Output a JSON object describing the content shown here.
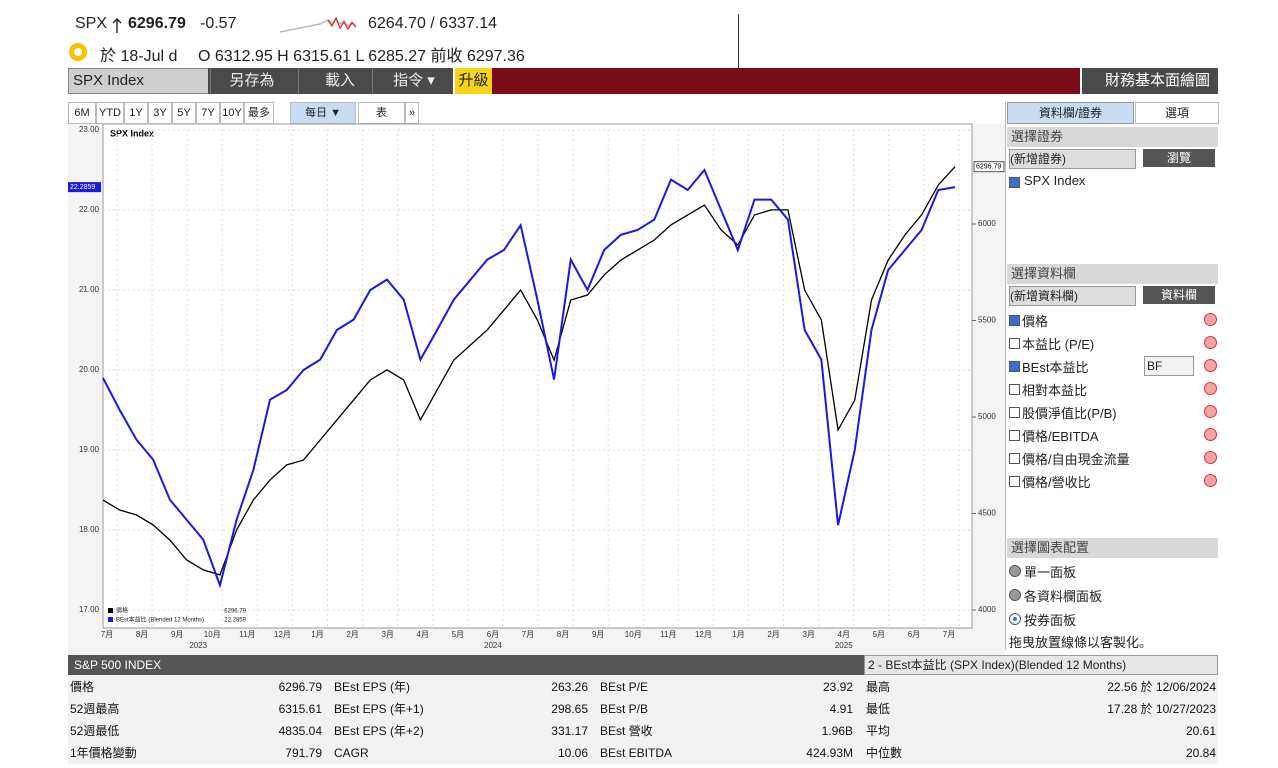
{
  "header": {
    "symbol": "SPX",
    "price": "6296.79",
    "change": "-0.57",
    "range": "6264.70 / 6337.14",
    "date": "於 18-Jul d",
    "ohlc": "O 6312.95 H 6315.61 L 6285.27 前收 6297.36"
  },
  "toolbar": {
    "security": "SPX Index",
    "buttons": [
      "另存為",
      "載入",
      "指令 ▾"
    ],
    "upgrade": "升級",
    "right_title": "財務基本面繪圖"
  },
  "periods": [
    "6M",
    "YTD",
    "1Y",
    "3Y",
    "5Y",
    "7Y",
    "10Y",
    "最多"
  ],
  "frequency": "每日 ▼",
  "table_button": "表",
  "more": "»",
  "chart": {
    "type": "line",
    "title": "SPX Index",
    "months": [
      "7月",
      "8月",
      "9月",
      "10月",
      "11月",
      "12月",
      "1月",
      "2月",
      "3月",
      "4月",
      "5月",
      "6月",
      "7月",
      "8月",
      "9月",
      "10月",
      "11月",
      "12月",
      "1月",
      "2月",
      "3月",
      "4月",
      "5月",
      "6月",
      "7月"
    ],
    "years": [
      "2023",
      "2024",
      "2025"
    ],
    "ylim": [
      16.775,
      23.075
    ],
    "yticks": [
      {
        "value": 17,
        "label": "17.00"
      },
      {
        "value": 18,
        "label": "18.00"
      },
      {
        "value": 19,
        "label": "19.00"
      },
      {
        "value": 20,
        "label": "20.00"
      },
      {
        "value": 21,
        "label": "21.00"
      },
      {
        "value": 22,
        "label": "22.00"
      },
      {
        "value": 23,
        "label": "23.00"
      }
    ],
    "y2lim": [
      3907,
      6518
    ],
    "y2ticks": [
      4000,
      4500,
      5000,
      5500,
      6000
    ],
    "grid": true,
    "series": [
      {
        "name": "價格",
        "color": "#000000",
        "axis": "y2",
        "last_label": "6296.79",
        "values": [
          4570,
          4518,
          4493,
          4441,
          4363,
          4260,
          4208,
          4182,
          4415,
          4570,
          4674,
          4752,
          4777,
          4881,
          4985,
          5088,
          5192,
          5244,
          5192,
          4985,
          5140,
          5295,
          5373,
          5451,
          5554,
          5658,
          5503,
          5295,
          5606,
          5632,
          5736,
          5813,
          5865,
          5917,
          5995,
          6047,
          6098,
          5969,
          5891,
          6047,
          6073,
          6073,
          5658,
          5503,
          4933,
          5088,
          5606,
          5813,
          5943,
          6047,
          6202,
          6296.79
        ]
      },
      {
        "name": "BEst本益比 (Blended 12 Months)",
        "color": "#1a1adc",
        "axis": "y",
        "last_label": "22.2859",
        "values": [
          19.9,
          19.5,
          19.13,
          18.88,
          18.38,
          18.13,
          17.88,
          17.31,
          18.13,
          18.75,
          19.63,
          19.75,
          20.0,
          20.13,
          20.5,
          20.63,
          21.0,
          21.13,
          20.88,
          20.13,
          20.5,
          20.88,
          21.13,
          21.38,
          21.5,
          21.81,
          20.88,
          19.88,
          21.38,
          21.0,
          21.5,
          21.69,
          21.75,
          21.88,
          22.38,
          22.25,
          22.5,
          22.0,
          21.5,
          22.13,
          22.13,
          21.88,
          20.5,
          20.13,
          18.06,
          19.0,
          20.5,
          21.25,
          21.5,
          21.75,
          22.25,
          22.2859
        ]
      }
    ]
  },
  "panel": {
    "tabs": [
      "資料欄/證券",
      "選項"
    ],
    "select_security": "選擇證券",
    "add_security": "(新增證券)",
    "browse": "瀏覽",
    "securities": [
      "SPX Index"
    ],
    "select_field": "選擇資料欄",
    "add_field": "(新增資料欄)",
    "field_button": "資料欄",
    "fields": [
      {
        "label": "價格",
        "checked": true
      },
      {
        "label": "本益比 (P/E)",
        "checked": false
      },
      {
        "label": "BEst本益比",
        "checked": true
      },
      {
        "label": "相對本益比",
        "checked": false
      },
      {
        "label": "股價淨值比(P/B)",
        "checked": false
      },
      {
        "label": "價格/EBITDA",
        "checked": false
      },
      {
        "label": "價格/自由現金流量",
        "checked": false
      },
      {
        "label": "價格/營收比",
        "checked": false
      }
    ],
    "bf": "BF",
    "select_layout": "選擇圖表配置",
    "layouts": [
      {
        "label": "單一面板",
        "selected": false
      },
      {
        "label": "各資料欄面板",
        "selected": false
      },
      {
        "label": "按券面板",
        "selected": true
      }
    ],
    "hint": "拖曳放置線條以客製化。"
  },
  "table": {
    "title": "S&P 500 INDEX",
    "selector": "2 - BEst本益比 (SPX Index)(Blended 12 Months)",
    "rows": [
      [
        "價格",
        "6296.79",
        "BEst EPS  (年)",
        "263.26",
        "BEst P/E",
        "23.92",
        "最高",
        "22.56 於 12/06/2024"
      ],
      [
        "52週最高",
        "6315.61",
        "BEst EPS  (年+1)",
        "298.65",
        "BEst P/B",
        "4.91",
        "最低",
        "17.28 於 10/27/2023"
      ],
      [
        "52週最低",
        "4835.04",
        "BEst EPS  (年+2)",
        "331.17",
        "BEst 營收",
        "1.96B",
        "平均",
        "20.61"
      ],
      [
        "1年價格變動",
        "791.79",
        "CAGR",
        "10.06",
        "BEst EBITDA",
        "424.93M",
        "中位數",
        "20.84"
      ]
    ]
  }
}
